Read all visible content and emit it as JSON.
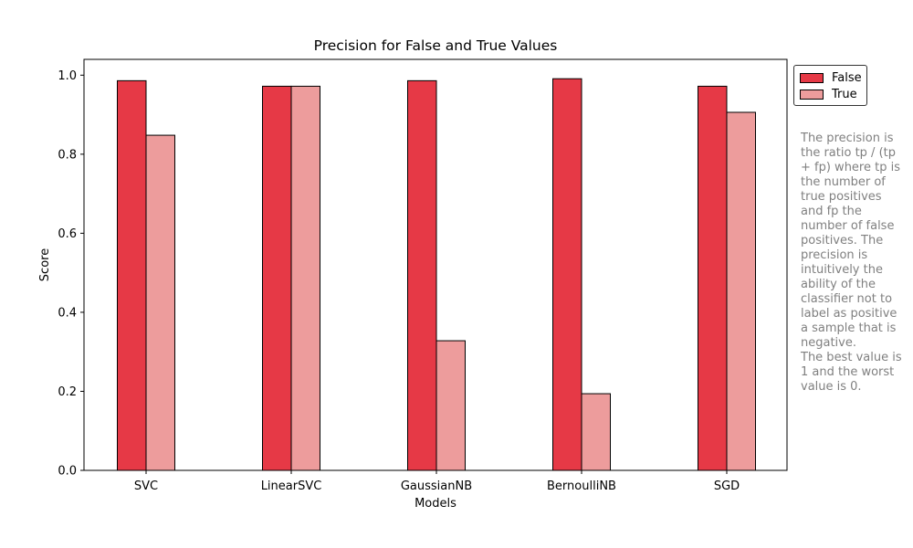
{
  "chart_data": {
    "type": "bar",
    "title": "Precision for False and True Values",
    "xlabel": "Models",
    "ylabel": "Score",
    "categories": [
      "SVC",
      "LinearSVC",
      "GaussianNB",
      "BernoulliNB",
      "SGD"
    ],
    "series": [
      {
        "name": "False",
        "color": "#e63946",
        "values": [
          0.986,
          0.972,
          0.986,
          0.991,
          0.972
        ]
      },
      {
        "name": "True",
        "color": "#ed9c9c",
        "values": [
          0.848,
          0.972,
          0.328,
          0.194,
          0.906
        ]
      }
    ],
    "ylim": [
      0,
      1.04
    ],
    "yticks": [
      "0.0",
      "0.2",
      "0.4",
      "0.6",
      "0.8",
      "1.0"
    ],
    "grid": false,
    "legend_position": "outside-top-right"
  },
  "annotation": "The precision is\nthe ratio tp / (tp\n+ fp) where tp is\nthe number of\ntrue positives\nand fp the\nnumber of false\npositives. The\nprecision is\nintuitively the\nability of the\nclassifier not to\nlabel as positive\na sample that is\nnegative.\nThe best value is\n1 and the worst\nvalue is 0."
}
